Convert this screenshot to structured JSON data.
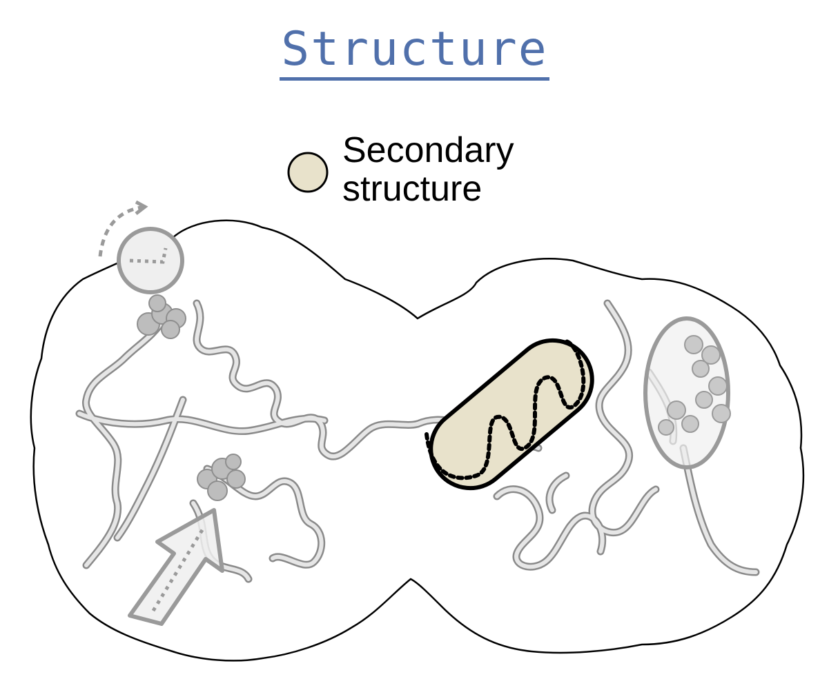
{
  "title": "Structure",
  "legend": {
    "line1": "Secondary",
    "line2": "structure",
    "swatch_color": "#e8e2cb"
  },
  "colors": {
    "title": "#5070ab",
    "outline": "#000000",
    "ribbon": "#d9d9d9",
    "marker_gray": "#9a9a9a"
  },
  "icons": [
    "protein-surface-outline",
    "protein-ribbon",
    "rotation-marker-icon",
    "ligand-sphere-cluster-icon",
    "arrow-marker-icon",
    "secondary-structure-capsule-icon",
    "oval-marker-icon"
  ]
}
